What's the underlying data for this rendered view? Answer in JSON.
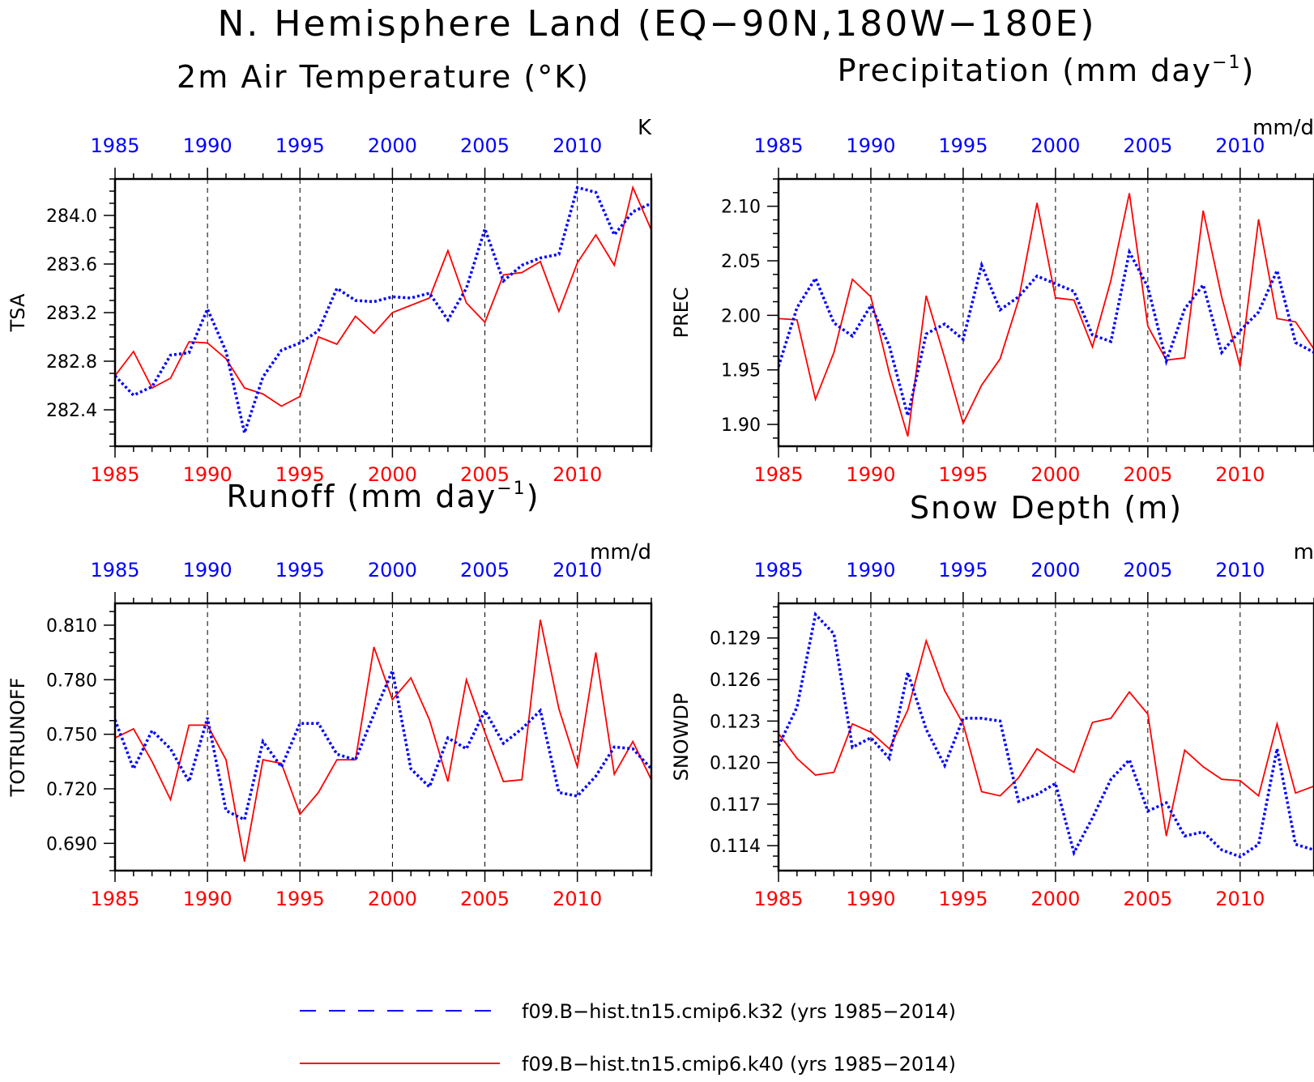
{
  "page": {
    "title": "N. Hemisphere Land (EQ−90N,180W−180E)"
  },
  "colors": {
    "series_k32": "#0000ff",
    "series_k40": "#ff0000",
    "axis": "#000000"
  },
  "legend": {
    "entries": [
      {
        "label": "f09.B−hist.tn15.cmip6.k32 (yrs 1985−2014)",
        "color": "#0000ff",
        "style": "dashed"
      },
      {
        "label": "f09.B−hist.tn15.cmip6.k40 (yrs 1985−2014)",
        "color": "#ff0000",
        "style": "solid"
      }
    ]
  },
  "chart_data": [
    {
      "type": "line",
      "title_main": "2m Air Temperature (°K)",
      "title_sup": "",
      "title_tail": "",
      "ylabel": "TSA",
      "units": "K",
      "xlim": [
        1985,
        2014
      ],
      "ylim": [
        282.1,
        284.3
      ],
      "yticks": [
        282.4,
        282.8,
        283.2,
        283.6,
        284.0
      ],
      "ytick_labels": [
        "282.4",
        "282.8",
        "283.2",
        "283.6",
        "284.0"
      ],
      "xticks": [
        1985,
        1990,
        1995,
        2000,
        2005,
        2010
      ],
      "xtick_labels": [
        "1985",
        "1990",
        "1995",
        "2000",
        "2005",
        "2010"
      ],
      "series": [
        {
          "name": "f09.B−hist.tn15.cmip6.k32",
          "color": "#0000ff",
          "style": "dashed",
          "values": [
            282.68,
            282.52,
            282.59,
            282.85,
            282.87,
            283.23,
            282.88,
            282.21,
            282.67,
            282.89,
            282.95,
            283.05,
            283.4,
            283.3,
            283.29,
            283.33,
            283.32,
            283.36,
            283.14,
            283.4,
            283.89,
            283.46,
            283.59,
            283.65,
            283.68,
            284.23,
            284.19,
            283.84,
            284.03,
            284.1
          ]
        },
        {
          "name": "f09.B−hist.tn15.cmip6.k40",
          "color": "#ff0000",
          "style": "solid",
          "values": [
            282.68,
            282.88,
            282.58,
            282.66,
            282.96,
            282.95,
            282.82,
            282.58,
            282.53,
            282.43,
            282.51,
            283.0,
            282.94,
            283.17,
            283.03,
            283.2,
            283.26,
            283.32,
            283.71,
            283.28,
            283.12,
            283.51,
            283.53,
            283.62,
            283.21,
            283.61,
            283.84,
            283.59,
            284.23,
            283.88
          ]
        }
      ]
    },
    {
      "type": "line",
      "title_main": "Precipitation (mm day",
      "title_sup": "−1",
      "title_tail": ")",
      "ylabel": "PREC",
      "units": "mm/d",
      "xlim": [
        1985,
        2014
      ],
      "ylim": [
        1.88,
        2.125
      ],
      "yticks": [
        1.9,
        1.95,
        2.0,
        2.05,
        2.1
      ],
      "ytick_labels": [
        "1.90",
        "1.95",
        "2.00",
        "2.05",
        "2.10"
      ],
      "xticks": [
        1985,
        1990,
        1995,
        2000,
        2005,
        2010
      ],
      "xtick_labels": [
        "1985",
        "1990",
        "1995",
        "2000",
        "2005",
        "2010"
      ],
      "series": [
        {
          "name": "f09.B−hist.tn15.cmip6.k32",
          "color": "#0000ff",
          "style": "dashed",
          "values": [
            1.953,
            2.007,
            2.034,
            1.993,
            1.981,
            2.009,
            1.972,
            1.908,
            1.983,
            1.992,
            1.978,
            2.046,
            2.005,
            2.017,
            2.036,
            2.029,
            2.022,
            1.982,
            1.976,
            2.058,
            2.026,
            1.958,
            2.006,
            2.028,
            1.966,
            1.986,
            2.003,
            2.041,
            1.975,
            1.966
          ]
        },
        {
          "name": "f09.B−hist.tn15.cmip6.k40",
          "color": "#ff0000",
          "style": "solid",
          "values": [
            1.997,
            1.996,
            1.923,
            1.966,
            2.033,
            2.017,
            1.947,
            1.889,
            2.018,
            1.961,
            1.901,
            1.936,
            1.96,
            2.014,
            2.103,
            2.016,
            2.014,
            1.971,
            2.032,
            2.112,
            1.99,
            1.959,
            1.961,
            2.096,
            2.017,
            1.953,
            2.088,
            1.997,
            1.994,
            1.969
          ]
        }
      ]
    },
    {
      "type": "line",
      "title_main": "Runoff (mm day",
      "title_sup": "−1",
      "title_tail": ")",
      "ylabel": "TOTRUNOFF",
      "units": "mm/d",
      "xlim": [
        1985,
        2014
      ],
      "ylim": [
        0.675,
        0.822
      ],
      "yticks": [
        0.69,
        0.72,
        0.75,
        0.78,
        0.81
      ],
      "ytick_labels": [
        "0.690",
        "0.720",
        "0.750",
        "0.780",
        "0.810"
      ],
      "xticks": [
        1985,
        1990,
        1995,
        2000,
        2005,
        2010
      ],
      "xtick_labels": [
        "1985",
        "1990",
        "1995",
        "2000",
        "2005",
        "2010"
      ],
      "series": [
        {
          "name": "f09.B−hist.tn15.cmip6.k32",
          "color": "#0000ff",
          "style": "dashed",
          "values": [
            0.758,
            0.731,
            0.752,
            0.742,
            0.724,
            0.759,
            0.708,
            0.703,
            0.746,
            0.732,
            0.756,
            0.756,
            0.739,
            0.736,
            0.761,
            0.785,
            0.731,
            0.721,
            0.748,
            0.742,
            0.763,
            0.745,
            0.753,
            0.763,
            0.718,
            0.716,
            0.727,
            0.743,
            0.742,
            0.731
          ]
        },
        {
          "name": "f09.B−hist.tn15.cmip6.k40",
          "color": "#ff0000",
          "style": "solid",
          "values": [
            0.748,
            0.753,
            0.735,
            0.714,
            0.755,
            0.755,
            0.736,
            0.68,
            0.736,
            0.734,
            0.706,
            0.718,
            0.736,
            0.736,
            0.798,
            0.769,
            0.781,
            0.758,
            0.724,
            0.78,
            0.751,
            0.724,
            0.725,
            0.813,
            0.764,
            0.732,
            0.795,
            0.728,
            0.746,
            0.725
          ]
        }
      ]
    },
    {
      "type": "line",
      "title_main": "Snow Depth (m)",
      "title_sup": "",
      "title_tail": "",
      "ylabel": "SNOWDP",
      "units": "m",
      "xlim": [
        1985,
        2014
      ],
      "ylim": [
        0.1122,
        0.1315
      ],
      "yticks": [
        0.114,
        0.117,
        0.12,
        0.123,
        0.126,
        0.129
      ],
      "ytick_labels": [
        "0.114",
        "0.117",
        "0.120",
        "0.123",
        "0.126",
        "0.129"
      ],
      "xticks": [
        1985,
        1990,
        1995,
        2000,
        2005,
        2010
      ],
      "xtick_labels": [
        "1985",
        "1990",
        "1995",
        "2000",
        "2005",
        "2010"
      ],
      "series": [
        {
          "name": "f09.B−hist.tn15.cmip6.k32",
          "color": "#0000ff",
          "style": "dashed",
          "values": [
            0.1212,
            0.124,
            0.1307,
            0.1293,
            0.1211,
            0.1218,
            0.1203,
            0.1265,
            0.1224,
            0.1198,
            0.1232,
            0.1232,
            0.123,
            0.1172,
            0.1177,
            0.1185,
            0.1135,
            0.116,
            0.1188,
            0.1202,
            0.1165,
            0.1171,
            0.1147,
            0.115,
            0.1137,
            0.1132,
            0.1141,
            0.121,
            0.1141,
            0.1137
          ]
        },
        {
          "name": "f09.B−hist.tn15.cmip6.k40",
          "color": "#ff0000",
          "style": "solid",
          "values": [
            0.1221,
            0.1203,
            0.1191,
            0.1193,
            0.1228,
            0.1222,
            0.121,
            0.1238,
            0.1288,
            0.1252,
            0.1228,
            0.1179,
            0.1176,
            0.1189,
            0.121,
            0.1201,
            0.1193,
            0.1229,
            0.1232,
            0.1251,
            0.1235,
            0.1147,
            0.1209,
            0.1197,
            0.1188,
            0.1187,
            0.1176,
            0.1228,
            0.1178,
            0.1183
          ]
        }
      ]
    }
  ]
}
